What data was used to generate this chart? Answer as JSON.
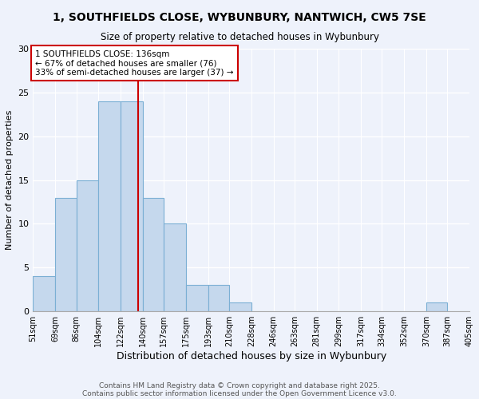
{
  "title1": "1, SOUTHFIELDS CLOSE, WYBUNBURY, NANTWICH, CW5 7SE",
  "title2": "Size of property relative to detached houses in Wybunbury",
  "xlabel": "Distribution of detached houses by size in Wybunbury",
  "ylabel": "Number of detached properties",
  "footer1": "Contains HM Land Registry data © Crown copyright and database right 2025.",
  "footer2": "Contains public sector information licensed under the Open Government Licence v3.0.",
  "bin_edges": [
    51,
    69,
    86,
    104,
    122,
    140,
    157,
    175,
    193,
    210,
    228,
    246,
    263,
    281,
    299,
    317,
    334,
    352,
    370,
    387,
    405
  ],
  "counts": [
    4,
    13,
    15,
    24,
    24,
    13,
    10,
    3,
    3,
    1,
    0,
    0,
    0,
    0,
    0,
    0,
    0,
    0,
    1,
    0
  ],
  "bar_color": "#c5d8ed",
  "bar_edge_color": "#7bafd4",
  "vline_x": 136,
  "vline_color": "#cc0000",
  "annotation_title": "1 SOUTHFIELDS CLOSE: 136sqm",
  "annotation_line2": "← 67% of detached houses are smaller (76)",
  "annotation_line3": "33% of semi-detached houses are larger (37) →",
  "annotation_box_color": "white",
  "annotation_box_edge": "#cc0000",
  "ylim": [
    0,
    30
  ],
  "yticks": [
    0,
    5,
    10,
    15,
    20,
    25,
    30
  ],
  "tick_labels": [
    "51sqm",
    "69sqm",
    "86sqm",
    "104sqm",
    "122sqm",
    "140sqm",
    "157sqm",
    "175sqm",
    "193sqm",
    "210sqm",
    "228sqm",
    "246sqm",
    "263sqm",
    "281sqm",
    "299sqm",
    "317sqm",
    "334sqm",
    "352sqm",
    "370sqm",
    "387sqm",
    "405sqm"
  ],
  "bg_color": "#eef2fb"
}
